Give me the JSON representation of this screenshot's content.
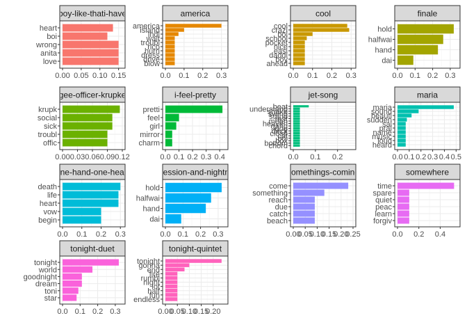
{
  "chart_data": [
    {
      "type": "bar",
      "orientation": "horizontal",
      "title": "a-boy-like-thati-have-a",
      "categories": [
        "heart",
        "boi",
        "wrong",
        "anita",
        "love"
      ],
      "values": [
        0.135,
        0.12,
        0.15,
        0.15,
        0.15
      ],
      "xlim": [
        0,
        0.16
      ],
      "xticks": [
        "0.00",
        "0.05",
        "0.10",
        "0.15"
      ],
      "xtick_values": [
        0,
        0.05,
        0.1,
        0.15
      ],
      "color": "#F8766D"
    },
    {
      "type": "bar",
      "orientation": "horizontal",
      "title": "america",
      "categories": [
        "america",
        "island",
        "indi",
        "wait",
        "troubl",
        "rico",
        "hurri",
        "dress",
        "drive",
        "blow"
      ],
      "values": [
        0.3,
        0.1,
        0.07,
        0.05,
        0.05,
        0.05,
        0.05,
        0.05,
        0.05,
        0.05
      ],
      "xlim": [
        0,
        0.32
      ],
      "xticks": [
        "0.0",
        "0.1",
        "0.2",
        "0.3"
      ],
      "xtick_values": [
        0,
        0.1,
        0.2,
        0.3
      ],
      "color": "#E58700"
    },
    {
      "type": "bar",
      "orientation": "horizontal",
      "title": "cool",
      "categories": [
        "cool",
        "crazi",
        "boi",
        "school",
        "pocket",
        "nice",
        "easi",
        "daddi",
        "boy",
        "ahead"
      ],
      "values": [
        0.28,
        0.29,
        0.1,
        0.07,
        0.06,
        0.06,
        0.06,
        0.06,
        0.06,
        0.06
      ],
      "xlim": [
        0,
        0.31
      ],
      "xticks": [
        "0.0",
        "0.1",
        "0.2",
        "0.3"
      ],
      "xtick_values": [
        0,
        0.1,
        0.2,
        0.3
      ],
      "color": "#C99800"
    },
    {
      "type": "bar",
      "orientation": "horizontal",
      "title": "finale",
      "categories": [
        "hold",
        "halfwai",
        "hand",
        "dai"
      ],
      "values": [
        0.32,
        0.26,
        0.23,
        0.09
      ],
      "xlim": [
        0,
        0.34
      ],
      "xticks": [
        "0.0",
        "0.1",
        "0.2",
        "0.3"
      ],
      "xtick_values": [
        0,
        0.1,
        0.2,
        0.3
      ],
      "color": "#A3A500"
    },
    {
      "type": "bar",
      "orientation": "horizontal",
      "title": "gee-officer-krupke",
      "categories": [
        "krupk",
        "social",
        "sick",
        "troubl",
        "offic"
      ],
      "values": [
        0.115,
        0.1,
        0.1,
        0.09,
        0.09
      ],
      "xlim": [
        0,
        0.12
      ],
      "xticks": [
        "0.00",
        "0.03",
        "0.06",
        "0.09",
        "0.12"
      ],
      "xtick_values": [
        0,
        0.03,
        0.06,
        0.09,
        0.12
      ],
      "color": "#6BB100"
    },
    {
      "type": "bar",
      "orientation": "horizontal",
      "title": "i-feel-pretty",
      "categories": [
        "pretti",
        "feel",
        "girl",
        "mirror",
        "charm"
      ],
      "values": [
        0.42,
        0.1,
        0.08,
        0.05,
        0.05
      ],
      "xlim": [
        0,
        0.44
      ],
      "xticks": [
        "0.0",
        "0.1",
        "0.2",
        "0.3",
        "0.4"
      ],
      "xtick_values": [
        0,
        0.1,
        0.2,
        0.3,
        0.4
      ],
      "color": "#00BA38"
    },
    {
      "type": "bar",
      "orientation": "horizontal",
      "title": "jet-song",
      "categories": [
        "beat",
        "understand",
        "shake",
        "swing",
        "stand",
        "rest",
        "mean",
        "heaven",
        "gang",
        "dog",
        "deck",
        "close",
        "cat",
        "boi",
        "box",
        "bottom",
        "chord"
      ],
      "values": [
        0.07,
        0.03,
        0.03,
        0.03,
        0.03,
        0.03,
        0.03,
        0.03,
        0.03,
        0.03,
        0.03,
        0.03,
        0.03,
        0.03,
        0.03,
        0.03,
        0.03
      ],
      "xlim": [
        0,
        0.27
      ],
      "xticks": [
        "0.0",
        "0.1",
        "0.2"
      ],
      "xtick_values": [
        0,
        0.1,
        0.2
      ],
      "color": "#00BF7D"
    },
    {
      "type": "bar",
      "orientation": "horizontal",
      "title": "maria",
      "categories": [
        "maria",
        "sound",
        "beauti",
        "sudden",
        "sai",
        "pral",
        "name",
        "music",
        "loud",
        "heard"
      ],
      "values": [
        0.48,
        0.18,
        0.12,
        0.08,
        0.07,
        0.07,
        0.07,
        0.07,
        0.07,
        0.07
      ],
      "xlim": [
        0,
        0.51
      ],
      "xticks": [
        "0.0",
        "0.1",
        "0.2",
        "0.3",
        "0.4",
        "0.5"
      ],
      "xtick_values": [
        0,
        0.1,
        0.2,
        0.3,
        0.4,
        0.5
      ],
      "color": "#00C0AF"
    },
    {
      "type": "bar",
      "orientation": "horizontal",
      "title": "one-hand-one-heart",
      "categories": [
        "death",
        "life",
        "heart",
        "vow",
        "begin"
      ],
      "values": [
        0.3,
        0.29,
        0.29,
        0.2,
        0.2
      ],
      "xlim": [
        0,
        0.31
      ],
      "xticks": [
        "0.0",
        "0.1",
        "0.2",
        "0.3"
      ],
      "xtick_values": [
        0,
        0.1,
        0.2,
        0.3
      ],
      "color": "#00BCD8"
    },
    {
      "type": "bar",
      "orientation": "horizontal",
      "title": "procession-and-nightmare",
      "categories": [
        "hold",
        "halfwai",
        "hand",
        "dai"
      ],
      "values": [
        0.32,
        0.26,
        0.23,
        0.09
      ],
      "xlim": [
        0,
        0.34
      ],
      "xticks": [
        "0.0",
        "0.1",
        "0.2",
        "0.3"
      ],
      "xtick_values": [
        0,
        0.1,
        0.2,
        0.3
      ],
      "color": "#00B0F6"
    },
    {
      "type": "bar",
      "orientation": "horizontal",
      "title": "somethings-coming",
      "categories": [
        "come",
        "something",
        "reach",
        "due",
        "catch",
        "beach"
      ],
      "values": [
        0.23,
        0.13,
        0.09,
        0.09,
        0.09,
        0.09
      ],
      "xlim": [
        0,
        0.25
      ],
      "xticks": [
        "0.00",
        "0.05",
        "0.10",
        "0.15",
        "0.20",
        "0.25"
      ],
      "xtick_values": [
        0,
        0.05,
        0.1,
        0.15,
        0.2,
        0.25
      ],
      "color": "#9590FF"
    },
    {
      "type": "bar",
      "orientation": "horizontal",
      "title": "somewhere",
      "categories": [
        "time",
        "spare",
        "quiet",
        "peac",
        "learn",
        "forgiv"
      ],
      "values": [
        0.53,
        0.11,
        0.11,
        0.11,
        0.11,
        0.11
      ],
      "xlim": [
        0,
        0.56
      ],
      "xticks": [
        "0.0",
        "0.2",
        "0.4"
      ],
      "xtick_values": [
        0,
        0.2,
        0.4
      ],
      "color": "#E76BF3"
    },
    {
      "type": "bar",
      "orientation": "horizontal",
      "title": "tonight-duet",
      "categories": [
        "tonight",
        "world",
        "goodnight",
        "dream",
        "toni",
        "star"
      ],
      "values": [
        0.32,
        0.17,
        0.11,
        0.11,
        0.09,
        0.08
      ],
      "xlim": [
        0,
        0.34
      ],
      "xticks": [
        "0.0",
        "0.1",
        "0.2",
        "0.3"
      ],
      "xtick_values": [
        0,
        0.1,
        0.2,
        0.3
      ],
      "color": "#FA62DB"
    },
    {
      "type": "bar",
      "orientation": "horizontal",
      "title": "tonight-quintet",
      "categories": [
        "tonight",
        "gonna",
        "end",
        "fire",
        "rumbl",
        "night",
        "lot",
        "half",
        "fun",
        "endless"
      ],
      "values": [
        0.235,
        0.1,
        0.08,
        0.05,
        0.05,
        0.05,
        0.05,
        0.05,
        0.05,
        0.05
      ],
      "xlim": [
        0,
        0.25
      ],
      "xticks": [
        "0.00",
        "0.05",
        "0.10",
        "0.15",
        "0.20"
      ],
      "xtick_values": [
        0,
        0.05,
        0.1,
        0.15,
        0.2
      ],
      "color": "#FF62BC"
    }
  ]
}
